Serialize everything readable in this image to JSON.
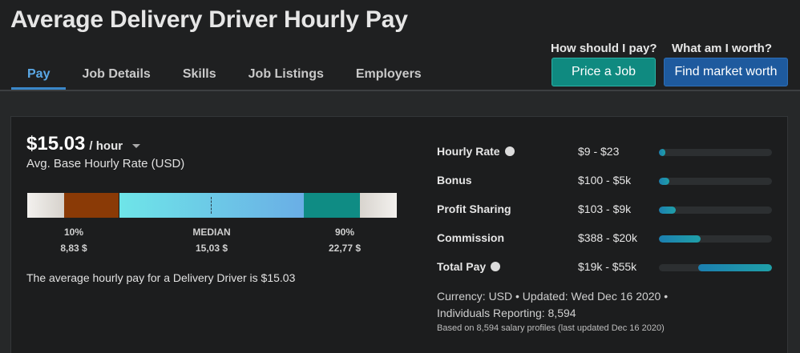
{
  "header": {
    "title": "Average Delivery Driver Hourly Pay",
    "tabs": [
      "Pay",
      "Job Details",
      "Skills",
      "Job Listings",
      "Employers"
    ],
    "active_tab": "Pay",
    "cta_price": {
      "label": "How should I pay?",
      "button": "Price a Job"
    },
    "cta_worth": {
      "label": "What am I worth?",
      "button": "Find market worth"
    }
  },
  "summary_card": {
    "rate": "$15.03",
    "rate_unit": "/ hour",
    "rate_subtitle": "Avg. Base Hourly Rate (USD)",
    "percentiles": {
      "p10": {
        "label": "10%",
        "value": "8,83 $"
      },
      "median": {
        "label": "MEDIAN",
        "value": "15,03 $"
      },
      "p90": {
        "label": "90%",
        "value": "22,77 $"
      }
    },
    "summary_text": "The average hourly pay for a Delivery Driver is $15.03"
  },
  "ranges": [
    {
      "label": "Hourly Rate",
      "info": true,
      "value": "$9 - $23",
      "fill_start": 0.0,
      "fill_end": 0.06
    },
    {
      "label": "Bonus",
      "info": false,
      "value": "$100 - $5k",
      "fill_start": 0.0,
      "fill_end": 0.09
    },
    {
      "label": "Profit Sharing",
      "info": false,
      "value": "$103 - $9k",
      "fill_start": 0.0,
      "fill_end": 0.15
    },
    {
      "label": "Commission",
      "info": false,
      "value": "$388 - $20k",
      "fill_start": 0.0,
      "fill_end": 0.37
    },
    {
      "label": "Total Pay",
      "info": true,
      "value": "$19k - $55k",
      "fill_start": 0.35,
      "fill_end": 1.0
    }
  ],
  "meta": {
    "line1": "Currency: USD  •  Updated: Wed Dec 16 2020  •",
    "line2": "Individuals Reporting: 8,594",
    "line3": "Based on 8,594 salary profiles (last updated Dec 16 2020)"
  },
  "colors": {
    "accent_tab": "#5aa8e6",
    "price_button": "#0f8a80",
    "worth_button": "#1e5a9e",
    "p10_segment": "#8a3a06",
    "p90_segment": "#0f8c84"
  }
}
